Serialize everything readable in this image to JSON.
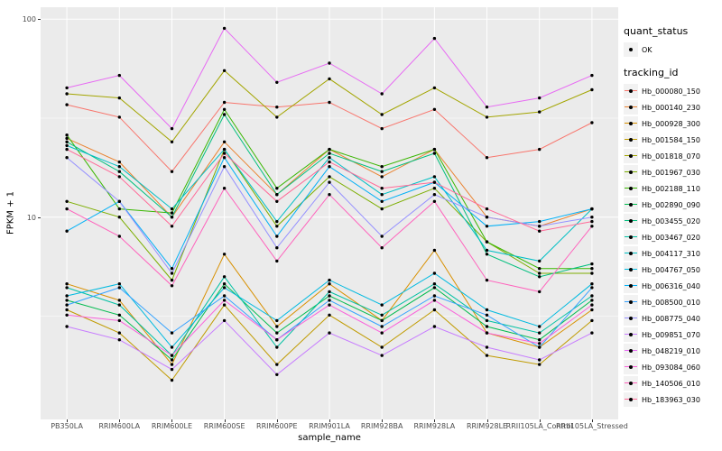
{
  "legend": {
    "quant_status": {
      "title": "quant_status",
      "items": [
        {
          "label": "OK",
          "symbol": "point"
        }
      ]
    },
    "tracking_id_title": "tracking_id"
  },
  "chart_data": {
    "type": "line",
    "title": "",
    "xlabel": "sample_name",
    "ylabel": "FPKM + 1",
    "yscale": "log10",
    "ylim": [
      0.95,
      115
    ],
    "yticks": [
      10,
      100
    ],
    "minor_gridlines": [
      3.162,
      31.62
    ],
    "grid": true,
    "legend_position": "right",
    "style": {
      "panel_bg": "#EBEBEB",
      "grid_color": "#FFFFFF",
      "point_color": "#000000",
      "tick_text_color": "#4D4D4D"
    },
    "categories": [
      "PB350LA",
      "RRIM600LA",
      "RRIM600LE",
      "RRIM600SE",
      "RRIM600PE",
      "RRIM901LA",
      "RRIM928BA",
      "RRIM928LA",
      "RRIM928LE",
      "RRII105LA_Control",
      "RRII105LA_Stressed"
    ],
    "series": [
      {
        "name": "Hb_000080_150",
        "color": "#F8766D",
        "values": [
          37,
          32,
          17,
          38,
          36,
          38,
          28,
          35,
          20,
          22,
          30
        ]
      },
      {
        "name": "Hb_000140_230",
        "color": "#EA8331",
        "values": [
          25,
          19,
          10,
          24,
          13,
          22,
          16,
          22,
          10,
          9,
          11
        ]
      },
      {
        "name": "Hb_000928_300",
        "color": "#D89000",
        "values": [
          4.6,
          3.8,
          1.8,
          6.5,
          2.8,
          4.6,
          3.0,
          6.8,
          2.6,
          2.2,
          3.4
        ]
      },
      {
        "name": "Hb_001584_150",
        "color": "#C09B00",
        "values": [
          3.4,
          2.6,
          1.5,
          3.6,
          1.8,
          3.2,
          2.2,
          3.4,
          2.0,
          1.8,
          3.0
        ]
      },
      {
        "name": "Hb_001818_070",
        "color": "#A3A500",
        "values": [
          42,
          40,
          24,
          55,
          32,
          50,
          33,
          45,
          32,
          34,
          44
        ]
      },
      {
        "name": "Hb_001967_030",
        "color": "#7CAE00",
        "values": [
          12,
          10,
          4.8,
          22,
          9,
          16,
          11,
          14,
          7.5,
          5.2,
          5.2
        ]
      },
      {
        "name": "Hb_002188_110",
        "color": "#39B600",
        "values": [
          26,
          11,
          10.5,
          35,
          14,
          22,
          18,
          22,
          7.5,
          5.5,
          5.5
        ]
      },
      {
        "name": "Hb_002890_090",
        "color": "#00BB4E",
        "values": [
          3.8,
          3.2,
          1.9,
          4.6,
          2.6,
          4.0,
          3.0,
          4.4,
          2.8,
          2.4,
          3.8
        ]
      },
      {
        "name": "Hb_003455_020",
        "color": "#00BF7D",
        "values": [
          24,
          17,
          10,
          33,
          13,
          21,
          17,
          21,
          6.5,
          5.0,
          5.8
        ]
      },
      {
        "name": "Hb_003467_020",
        "color": "#00C1A3",
        "values": [
          4.4,
          3.6,
          2.0,
          5.0,
          2.2,
          4.2,
          3.2,
          4.6,
          3.0,
          2.6,
          4.0
        ]
      },
      {
        "name": "Hb_004117_310",
        "color": "#00BFC4",
        "values": [
          23,
          18,
          11,
          22,
          9.5,
          20,
          13,
          16,
          6.8,
          6.0,
          11
        ]
      },
      {
        "name": "Hb_004767_050",
        "color": "#00BAE0",
        "values": [
          4.0,
          4.6,
          2.2,
          4.4,
          3.0,
          4.8,
          3.6,
          5.2,
          3.4,
          2.8,
          4.6
        ]
      },
      {
        "name": "Hb_006316_040",
        "color": "#00B0F6",
        "values": [
          8.5,
          12,
          5.5,
          20,
          8.0,
          18,
          12,
          15,
          9.0,
          9.5,
          11
        ]
      },
      {
        "name": "Hb_008500_010",
        "color": "#35A2FF",
        "values": [
          3.6,
          4.4,
          2.6,
          4.0,
          2.4,
          3.8,
          2.8,
          4.0,
          3.2,
          2.2,
          4.4
        ]
      },
      {
        "name": "Hb_008775_040",
        "color": "#9590FF",
        "values": [
          20,
          12,
          5.2,
          18,
          7.0,
          15,
          8.0,
          13,
          10,
          9.0,
          10
        ]
      },
      {
        "name": "Hb_009851_070",
        "color": "#C77CFF",
        "values": [
          2.8,
          2.4,
          1.7,
          3.0,
          1.6,
          2.6,
          2.0,
          2.8,
          2.2,
          1.9,
          2.6
        ]
      },
      {
        "name": "Hb_048219_010",
        "color": "#E76BF3",
        "values": [
          45,
          52,
          28,
          90,
          48,
          60,
          42,
          80,
          36,
          40,
          52
        ]
      },
      {
        "name": "Hb_093084_060",
        "color": "#FA62DB",
        "values": [
          3.2,
          3.0,
          2.0,
          3.8,
          2.4,
          3.6,
          2.6,
          3.8,
          2.6,
          2.3,
          3.6
        ]
      },
      {
        "name": "Hb_140506_010",
        "color": "#FF62BC",
        "values": [
          11,
          8.0,
          4.5,
          14,
          6.0,
          13,
          7.0,
          12,
          4.8,
          4.2,
          9.0
        ]
      },
      {
        "name": "Hb_183963_030",
        "color": "#FF6A98",
        "values": [
          22,
          16,
          9,
          21,
          12,
          19,
          14,
          15,
          11,
          8.5,
          9.5
        ]
      }
    ]
  }
}
